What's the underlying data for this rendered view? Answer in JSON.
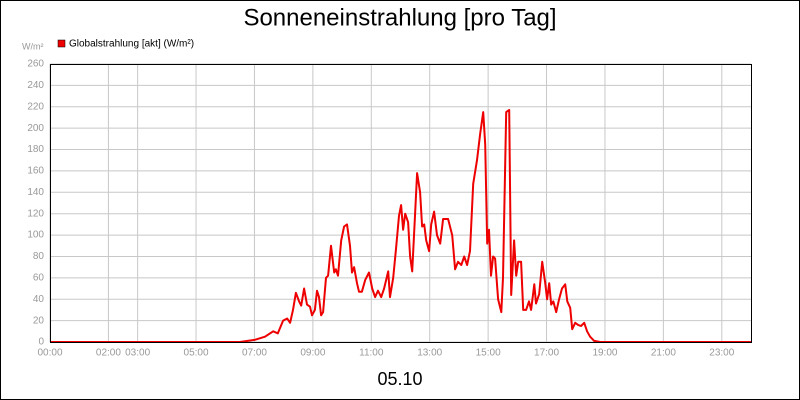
{
  "chart_data": {
    "type": "line",
    "title": "Sonneneinstrahlung [pro Tag]",
    "y_unit": "W/m²",
    "x_caption": "05.10",
    "series": [
      {
        "name": "Globalstrahlung [akt] (W/m²)",
        "color": "#ee0000",
        "x": [
          0,
          6.5,
          7.0,
          7.36,
          7.64,
          7.8,
          7.98,
          8.12,
          8.22,
          8.32,
          8.42,
          8.53,
          8.6,
          8.7,
          8.8,
          8.9,
          8.97,
          9.07,
          9.14,
          9.21,
          9.28,
          9.35,
          9.45,
          9.52,
          9.62,
          9.73,
          9.79,
          9.86,
          9.97,
          10.07,
          10.17,
          10.27,
          10.34,
          10.41,
          10.51,
          10.58,
          10.68,
          10.79,
          10.92,
          11.03,
          11.13,
          11.23,
          11.34,
          11.44,
          11.58,
          11.64,
          11.75,
          11.85,
          11.95,
          12.02,
          12.09,
          12.16,
          12.26,
          12.33,
          12.4,
          12.5,
          12.57,
          12.67,
          12.74,
          12.81,
          12.88,
          12.98,
          13.05,
          13.15,
          13.25,
          13.36,
          13.46,
          13.63,
          13.77,
          13.87,
          13.97,
          14.08,
          14.18,
          14.28,
          14.38,
          14.49,
          14.62,
          14.73,
          14.83,
          14.9,
          14.97,
          15.03,
          15.1,
          15.17,
          15.24,
          15.34,
          15.45,
          15.51,
          15.62,
          15.72,
          15.79,
          15.89,
          15.96,
          16.03,
          16.13,
          16.2,
          16.3,
          16.4,
          16.47,
          16.58,
          16.64,
          16.75,
          16.85,
          16.95,
          17.02,
          17.09,
          17.16,
          17.23,
          17.33,
          17.43,
          17.53,
          17.64,
          17.71,
          17.81,
          17.88,
          17.98,
          18.08,
          18.18,
          18.29,
          18.39,
          18.49,
          18.63,
          18.84,
          24
        ],
        "values": [
          0,
          0,
          2,
          5,
          10,
          8,
          20,
          22,
          18,
          30,
          46,
          38,
          34,
          50,
          35,
          33,
          25,
          30,
          48,
          42,
          25,
          28,
          60,
          62,
          90,
          65,
          68,
          62,
          95,
          108,
          110,
          90,
          65,
          70,
          55,
          47,
          47,
          58,
          65,
          50,
          42,
          48,
          42,
          50,
          66,
          42,
          60,
          88,
          118,
          128,
          105,
          120,
          112,
          80,
          66,
          120,
          158,
          140,
          108,
          110,
          95,
          85,
          110,
          122,
          100,
          92,
          115,
          115,
          100,
          68,
          75,
          72,
          80,
          72,
          85,
          148,
          170,
          195,
          215,
          185,
          92,
          105,
          62,
          80,
          78,
          40,
          28,
          60,
          215,
          217,
          44,
          95,
          62,
          75,
          75,
          30,
          30,
          38,
          30,
          54,
          36,
          45,
          75,
          56,
          40,
          55,
          35,
          38,
          28,
          40,
          50,
          54,
          38,
          32,
          12,
          18,
          16,
          15,
          18,
          10,
          5,
          1,
          0,
          0
        ]
      }
    ],
    "xlim": [
      0,
      24
    ],
    "xticks": [
      {
        "value": 0,
        "label": "00:00"
      },
      {
        "value": 2,
        "label": "02:00"
      },
      {
        "value": 3,
        "label": "03:00"
      },
      {
        "value": 5,
        "label": "05:00"
      },
      {
        "value": 7,
        "label": "07:00"
      },
      {
        "value": 9,
        "label": "09:00"
      },
      {
        "value": 11,
        "label": "11:00"
      },
      {
        "value": 13,
        "label": "13:00"
      },
      {
        "value": 15,
        "label": "15:00"
      },
      {
        "value": 17,
        "label": "17:00"
      },
      {
        "value": 19,
        "label": "19:00"
      },
      {
        "value": 21,
        "label": "21:00"
      },
      {
        "value": 23,
        "label": "23:00"
      }
    ],
    "ylim": [
      0,
      260
    ],
    "yticks": [
      0,
      20,
      40,
      60,
      80,
      100,
      120,
      140,
      160,
      180,
      200,
      220,
      240,
      260
    ],
    "grid": true
  }
}
